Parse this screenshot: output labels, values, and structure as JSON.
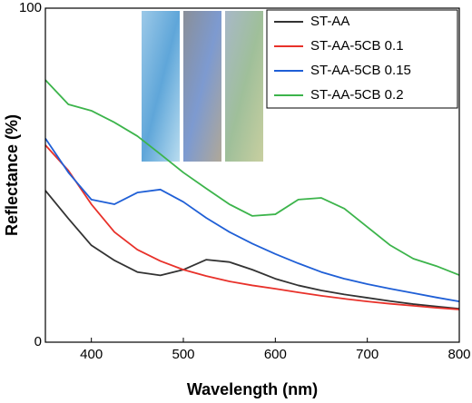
{
  "chart_data": {
    "type": "line",
    "x_label": "Wavelength (nm)",
    "y_label": "Reflectance (%)",
    "x": [
      350,
      375,
      400,
      425,
      450,
      475,
      500,
      525,
      550,
      575,
      600,
      625,
      650,
      675,
      700,
      725,
      750,
      775,
      800
    ],
    "series": [
      {
        "name": "ST-AA",
        "color": "#333333",
        "values": [
          45.4,
          37,
          29,
          24.5,
          21,
          20,
          21.7,
          24.7,
          24,
          21.7,
          19,
          17,
          15.5,
          14.3,
          13.3,
          12.3,
          11.4,
          10.7,
          10
        ]
      },
      {
        "name": "ST-AA-5CB 0.1",
        "color": "#e8312a",
        "values": [
          59,
          51.4,
          41.3,
          33,
          27.7,
          24.3,
          21.7,
          19.8,
          18.2,
          17,
          16,
          14.9,
          13.9,
          13,
          12.2,
          11.5,
          10.9,
          10.3,
          9.8
        ]
      },
      {
        "name": "ST-AA-5CB 0.15",
        "color": "#1f5fd6",
        "values": [
          61,
          50.8,
          42.7,
          41.3,
          44.8,
          45.7,
          42,
          37.2,
          33,
          29.5,
          26.4,
          23.6,
          21,
          19,
          17.4,
          16,
          14.7,
          13.4,
          12.2
        ]
      },
      {
        "name": "ST-AA-5CB 0.2",
        "color": "#3cb44b",
        "values": [
          78.5,
          71.2,
          69.3,
          65.8,
          61.7,
          56.3,
          50.8,
          46,
          41.3,
          37.8,
          38.3,
          42.7,
          43.2,
          40,
          34.5,
          29,
          25,
          22.8,
          20.1
        ]
      }
    ],
    "xlim": [
      350,
      800
    ],
    "xticks": [
      400,
      500,
      600,
      700,
      800
    ],
    "ylim": [
      0,
      100
    ],
    "yticks": [
      0,
      100
    ],
    "legend_position": "upper right"
  }
}
